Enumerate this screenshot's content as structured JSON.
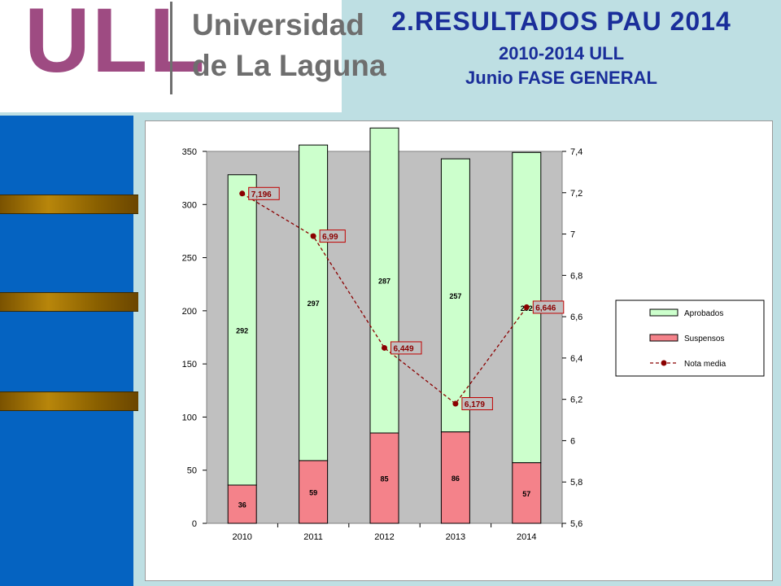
{
  "logo": {
    "letters": "ULL",
    "name_line1": "Universidad",
    "name_line2": "de La Laguna"
  },
  "header": {
    "title": "2.RESULTADOS PAU 2014",
    "subtitle": "2010-2014 ULL",
    "subtitle2": "Junio FASE GENERAL"
  },
  "colors": {
    "title": "#1a2e9a",
    "logo_purple": "#9e4b82",
    "side_bar": "#0563c1",
    "slide_bg": "#bedfe3",
    "aprobados": "#ccffcc",
    "suspensos": "#f4828a",
    "nota_media": "#8b0000",
    "plot_bg": "#c0c0c0"
  },
  "chart_data": {
    "type": "bar",
    "stacked": true,
    "categories": [
      "2010",
      "2011",
      "2012",
      "2013",
      "2014"
    ],
    "series": [
      {
        "name": "Aprobados",
        "values": [
          292,
          297,
          287,
          257,
          292
        ],
        "labels": [
          "292",
          "297",
          "287",
          "257",
          "292"
        ],
        "color": "#ccffcc"
      },
      {
        "name": "Suspensos",
        "values": [
          36,
          59,
          85,
          86,
          57
        ],
        "labels": [
          "36",
          "59",
          "85",
          "86",
          "57"
        ],
        "color": "#f4828a"
      }
    ],
    "line": {
      "name": "Nota media",
      "values": [
        7.196,
        6.99,
        6.449,
        6.179,
        6.646
      ],
      "labels": [
        "7,196",
        "6,99",
        "6,449",
        "6,179",
        "6,646"
      ],
      "axis": "right",
      "style": "dashed",
      "color": "#8b0000"
    },
    "ylim": [
      0,
      350
    ],
    "yticks": [
      "0",
      "50",
      "100",
      "150",
      "200",
      "250",
      "300",
      "350"
    ],
    "y2lim": [
      5.6,
      7.4
    ],
    "y2ticks": [
      "5,6",
      "5,8",
      "6",
      "6,2",
      "6,4",
      "6,6",
      "6,8",
      "7",
      "7,2",
      "7,4"
    ],
    "legend": [
      "Aprobados",
      "Suspensos",
      "Nota media"
    ],
    "legend_position": "right",
    "grid": false
  }
}
